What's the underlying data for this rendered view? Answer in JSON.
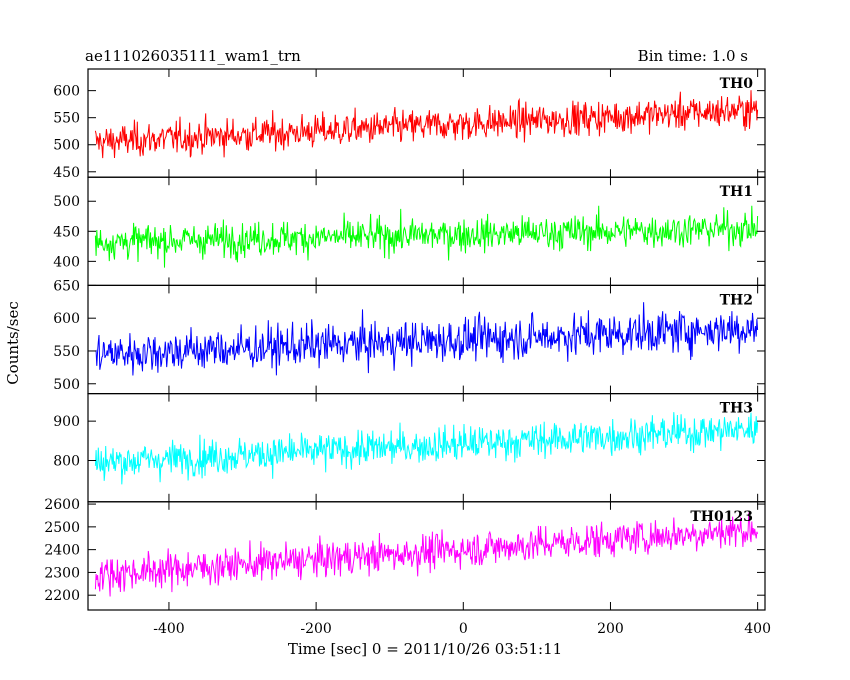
{
  "chart_data": {
    "type": "line",
    "title": "ae111026035111_wam1_trn",
    "subtitle": "Bin time: 1.0 s",
    "xlabel": "Time [sec] 0 = 2011/10/26 03:51:11",
    "ylabel": "Counts/sec",
    "xlim": [
      -510,
      410
    ],
    "x_ticks": [
      -400,
      -200,
      0,
      200,
      400
    ],
    "x_range": [
      -500,
      400
    ],
    "bin_time": 1.0,
    "grid": false,
    "legend": "none",
    "panels": [
      {
        "name": "TH0",
        "color": "#ff0000",
        "ylim": [
          440,
          640
        ],
        "y_ticks": [
          450,
          500,
          550,
          600
        ],
        "start_level": 505,
        "end_level": 565,
        "noise": 22
      },
      {
        "name": "TH1",
        "color": "#00ff00",
        "ylim": [
          360,
          540
        ],
        "y_ticks": [
          400,
          450,
          500
        ],
        "start_level": 432,
        "end_level": 455,
        "noise": 20
      },
      {
        "name": "TH2",
        "color": "#0000ff",
        "ylim": [
          485,
          650
        ],
        "y_ticks": [
          500,
          550,
          600,
          650
        ],
        "start_level": 545,
        "end_level": 585,
        "noise": 23
      },
      {
        "name": "TH3",
        "color": "#00ffff",
        "ylim": [
          695,
          970
        ],
        "y_ticks": [
          800,
          900
        ],
        "start_level": 795,
        "end_level": 880,
        "noise": 32
      },
      {
        "name": "TH0123",
        "color": "#ff00ff",
        "ylim": [
          2135,
          2610
        ],
        "y_ticks": [
          2200,
          2300,
          2400,
          2500,
          2600
        ],
        "start_level": 2290,
        "end_level": 2490,
        "noise": 55
      }
    ]
  }
}
